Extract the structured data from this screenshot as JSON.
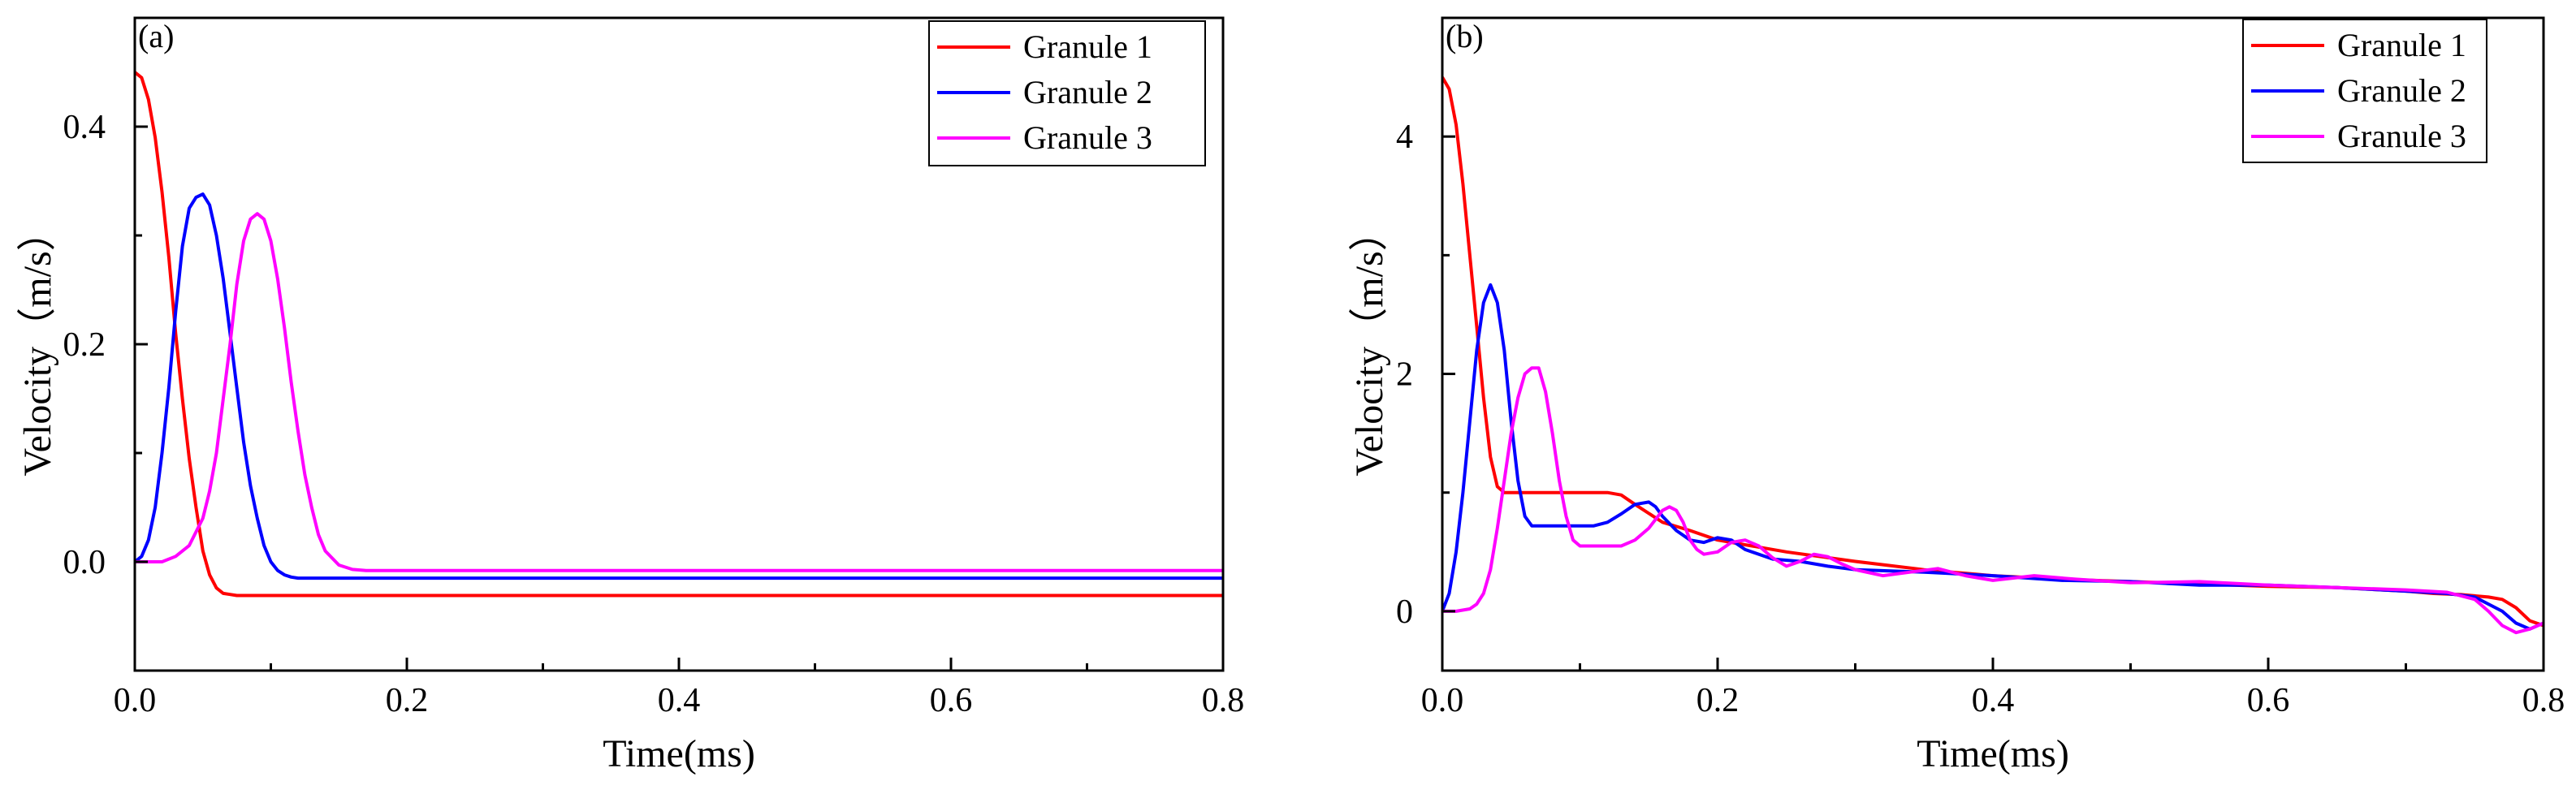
{
  "chart_data": [
    {
      "type": "line",
      "panel_label": "(a)",
      "xlabel": "Time(ms)",
      "ylabel": "Velocity（m/s）",
      "xlim": [
        0,
        0.8
      ],
      "ylim": [
        -0.1,
        0.5
      ],
      "xticks": [
        0.0,
        0.2,
        0.4,
        0.6,
        0.8
      ],
      "xtick_labels": [
        "0.0",
        "0.2",
        "0.4",
        "0.6",
        "0.8"
      ],
      "yticks": [
        0.0,
        0.2,
        0.4
      ],
      "ytick_labels": [
        "0.0",
        "0.2",
        "0.4"
      ],
      "legend_position": "top-right",
      "series": [
        {
          "name": "Granule 1",
          "color": "#ff0000",
          "x": [
            0,
            0.005,
            0.01,
            0.015,
            0.02,
            0.025,
            0.03,
            0.035,
            0.04,
            0.045,
            0.05,
            0.055,
            0.06,
            0.065,
            0.07,
            0.075,
            0.08,
            0.09,
            0.1,
            0.2,
            0.3,
            0.4,
            0.5,
            0.6,
            0.7,
            0.8
          ],
          "y": [
            0.45,
            0.445,
            0.425,
            0.39,
            0.34,
            0.28,
            0.21,
            0.15,
            0.095,
            0.05,
            0.01,
            -0.012,
            -0.024,
            -0.029,
            -0.03,
            -0.031,
            -0.031,
            -0.031,
            -0.031,
            -0.031,
            -0.031,
            -0.031,
            -0.031,
            -0.031,
            -0.031,
            -0.031
          ]
        },
        {
          "name": "Granule 2",
          "color": "#0000ff",
          "x": [
            0,
            0.005,
            0.01,
            0.015,
            0.02,
            0.025,
            0.03,
            0.035,
            0.04,
            0.045,
            0.05,
            0.055,
            0.06,
            0.065,
            0.07,
            0.075,
            0.08,
            0.085,
            0.09,
            0.095,
            0.1,
            0.105,
            0.11,
            0.115,
            0.12,
            0.13,
            0.2,
            0.4,
            0.6,
            0.8
          ],
          "y": [
            0.0,
            0.005,
            0.02,
            0.05,
            0.1,
            0.16,
            0.23,
            0.29,
            0.325,
            0.335,
            0.338,
            0.328,
            0.3,
            0.26,
            0.21,
            0.16,
            0.11,
            0.07,
            0.04,
            0.015,
            0.0,
            -0.008,
            -0.012,
            -0.014,
            -0.015,
            -0.015,
            -0.015,
            -0.015,
            -0.015,
            -0.015
          ]
        },
        {
          "name": "Granule 3",
          "color": "#ff00ff",
          "x": [
            0,
            0.02,
            0.03,
            0.04,
            0.05,
            0.055,
            0.06,
            0.065,
            0.07,
            0.075,
            0.08,
            0.085,
            0.09,
            0.095,
            0.1,
            0.105,
            0.11,
            0.115,
            0.12,
            0.125,
            0.13,
            0.135,
            0.14,
            0.15,
            0.16,
            0.17,
            0.2,
            0.4,
            0.6,
            0.8
          ],
          "y": [
            0.0,
            0.0,
            0.005,
            0.015,
            0.04,
            0.065,
            0.1,
            0.15,
            0.2,
            0.255,
            0.295,
            0.315,
            0.32,
            0.315,
            0.295,
            0.26,
            0.215,
            0.165,
            0.12,
            0.08,
            0.05,
            0.025,
            0.01,
            -0.003,
            -0.007,
            -0.008,
            -0.008,
            -0.008,
            -0.008,
            -0.008
          ]
        }
      ]
    },
    {
      "type": "line",
      "panel_label": "(b)",
      "xlabel": "Time(ms)",
      "ylabel": "Velocity（m/s）",
      "xlim": [
        0,
        0.8
      ],
      "ylim": [
        -0.5,
        5.0
      ],
      "xticks": [
        0.0,
        0.2,
        0.4,
        0.6,
        0.8
      ],
      "xtick_labels": [
        "0.0",
        "0.2",
        "0.4",
        "0.6",
        "0.8"
      ],
      "yticks": [
        0,
        2,
        4
      ],
      "ytick_labels": [
        "0",
        "2",
        "4"
      ],
      "legend_position": "top-right",
      "series": [
        {
          "name": "Granule 1",
          "color": "#ff0000",
          "x": [
            0,
            0.005,
            0.01,
            0.015,
            0.02,
            0.025,
            0.03,
            0.035,
            0.04,
            0.045,
            0.05,
            0.06,
            0.08,
            0.1,
            0.12,
            0.13,
            0.14,
            0.16,
            0.18,
            0.2,
            0.25,
            0.3,
            0.35,
            0.4,
            0.45,
            0.5,
            0.55,
            0.6,
            0.65,
            0.7,
            0.72,
            0.74,
            0.76,
            0.77,
            0.78,
            0.79,
            0.8
          ],
          "y": [
            4.5,
            4.4,
            4.1,
            3.6,
            3.0,
            2.4,
            1.8,
            1.3,
            1.05,
            1.0,
            1.0,
            1.0,
            1.0,
            1.0,
            1.0,
            0.98,
            0.9,
            0.75,
            0.68,
            0.6,
            0.5,
            0.42,
            0.35,
            0.3,
            0.27,
            0.25,
            0.23,
            0.21,
            0.2,
            0.17,
            0.15,
            0.14,
            0.12,
            0.1,
            0.03,
            -0.08,
            -0.12
          ]
        },
        {
          "name": "Granule 2",
          "color": "#0000ff",
          "x": [
            0,
            0.005,
            0.01,
            0.015,
            0.02,
            0.025,
            0.03,
            0.035,
            0.04,
            0.045,
            0.05,
            0.055,
            0.06,
            0.065,
            0.07,
            0.08,
            0.1,
            0.11,
            0.12,
            0.13,
            0.14,
            0.15,
            0.155,
            0.16,
            0.17,
            0.18,
            0.19,
            0.2,
            0.21,
            0.22,
            0.24,
            0.26,
            0.28,
            0.3,
            0.35,
            0.4,
            0.45,
            0.5,
            0.55,
            0.6,
            0.65,
            0.7,
            0.73,
            0.75,
            0.77,
            0.78,
            0.79,
            0.8
          ],
          "y": [
            0.0,
            0.15,
            0.5,
            1.0,
            1.6,
            2.2,
            2.6,
            2.75,
            2.6,
            2.2,
            1.6,
            1.1,
            0.8,
            0.72,
            0.72,
            0.72,
            0.72,
            0.72,
            0.75,
            0.82,
            0.9,
            0.92,
            0.88,
            0.8,
            0.68,
            0.6,
            0.58,
            0.62,
            0.6,
            0.52,
            0.44,
            0.42,
            0.38,
            0.35,
            0.33,
            0.3,
            0.26,
            0.25,
            0.22,
            0.22,
            0.2,
            0.17,
            0.15,
            0.12,
            0.0,
            -0.1,
            -0.15,
            -0.1
          ]
        },
        {
          "name": "Granule 3",
          "color": "#ff00ff",
          "x": [
            0,
            0.01,
            0.02,
            0.025,
            0.03,
            0.035,
            0.04,
            0.045,
            0.05,
            0.055,
            0.06,
            0.065,
            0.07,
            0.075,
            0.08,
            0.085,
            0.09,
            0.095,
            0.1,
            0.11,
            0.12,
            0.13,
            0.14,
            0.15,
            0.16,
            0.165,
            0.17,
            0.175,
            0.18,
            0.185,
            0.19,
            0.2,
            0.21,
            0.22,
            0.23,
            0.24,
            0.25,
            0.26,
            0.27,
            0.28,
            0.29,
            0.3,
            0.32,
            0.34,
            0.36,
            0.38,
            0.4,
            0.43,
            0.46,
            0.5,
            0.55,
            0.6,
            0.65,
            0.7,
            0.73,
            0.75,
            0.76,
            0.77,
            0.78,
            0.79,
            0.8
          ],
          "y": [
            0.0,
            0.0,
            0.02,
            0.06,
            0.15,
            0.35,
            0.7,
            1.1,
            1.5,
            1.8,
            2.0,
            2.05,
            2.05,
            1.85,
            1.5,
            1.1,
            0.8,
            0.6,
            0.55,
            0.55,
            0.55,
            0.55,
            0.6,
            0.7,
            0.85,
            0.88,
            0.85,
            0.75,
            0.6,
            0.52,
            0.48,
            0.5,
            0.58,
            0.6,
            0.55,
            0.45,
            0.38,
            0.42,
            0.48,
            0.46,
            0.4,
            0.35,
            0.3,
            0.33,
            0.36,
            0.3,
            0.26,
            0.3,
            0.27,
            0.24,
            0.25,
            0.22,
            0.2,
            0.18,
            0.16,
            0.1,
            0.0,
            -0.12,
            -0.18,
            -0.15,
            -0.1
          ]
        }
      ]
    }
  ]
}
